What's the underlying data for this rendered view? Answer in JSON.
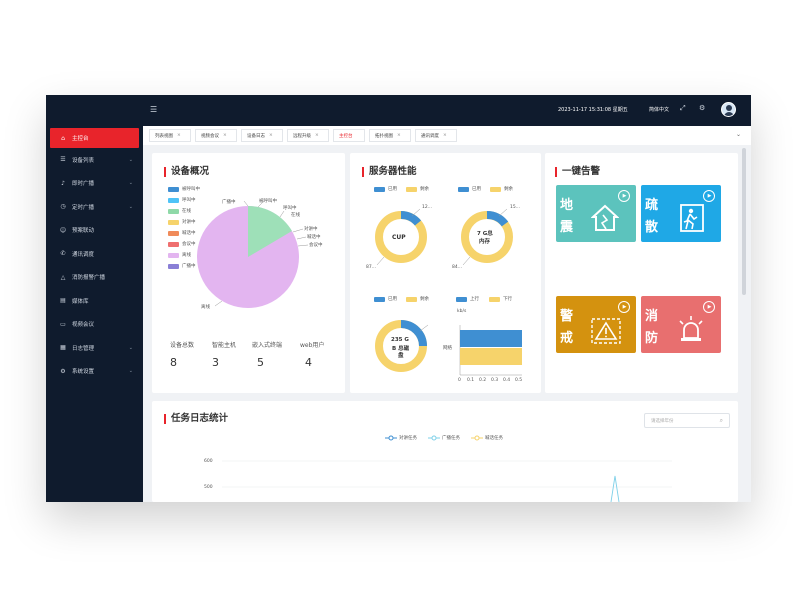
{
  "topbar": {
    "menu_icon": "menu-fold-icon",
    "datetime": "2023-11-17 15:31:08 星期五",
    "language": "简体中文",
    "fullscreen_icon": "fullscreen-icon",
    "settings_icon": "gear-icon",
    "bg_color": "#0f1b2d"
  },
  "sidebar": {
    "items": [
      {
        "label": "主控台",
        "icon": "home-icon",
        "active": true
      },
      {
        "label": "设备列表",
        "icon": "list-icon",
        "has_children": true
      },
      {
        "label": "即时广播",
        "icon": "bell-icon",
        "has_children": true
      },
      {
        "label": "定时广播",
        "icon": "clock-icon",
        "has_children": true
      },
      {
        "label": "预案联动",
        "icon": "users-icon"
      },
      {
        "label": "通讯调度",
        "icon": "phone-icon"
      },
      {
        "label": "消防报警广播",
        "icon": "alarm-icon"
      },
      {
        "label": "媒体库",
        "icon": "database-icon"
      },
      {
        "label": "视频会议",
        "icon": "video-icon"
      },
      {
        "label": "日志管理",
        "icon": "log-icon",
        "has_children": true
      },
      {
        "label": "系统设置",
        "icon": "settings-icon",
        "has_children": true
      }
    ],
    "accent_color": "#e8242b"
  },
  "tabs": [
    {
      "label": "列表视图",
      "active": false
    },
    {
      "label": "视频会议",
      "active": false
    },
    {
      "label": "设备日志",
      "active": false
    },
    {
      "label": "远程升级",
      "active": false
    },
    {
      "label": "主控台",
      "active": true
    },
    {
      "label": "拓扑视图",
      "active": false
    },
    {
      "label": "通讯调度",
      "active": false
    }
  ],
  "device_overview": {
    "title": "设备概况",
    "legend": [
      {
        "label": "被呼叫中",
        "color": "#3f8fd2"
      },
      {
        "label": "呼叫中",
        "color": "#4fc3f7"
      },
      {
        "label": "在线",
        "color": "#8fd9a8"
      },
      {
        "label": "对讲中",
        "color": "#f6d36b"
      },
      {
        "label": "喊话中",
        "color": "#f08b5a"
      },
      {
        "label": "会议中",
        "color": "#ef6f6f"
      },
      {
        "label": "离线",
        "color": "#e3b5f0"
      },
      {
        "label": "广播中",
        "color": "#8a7fd6"
      }
    ],
    "pie_labels": [
      "广播中",
      "被呼叫中",
      "呼叫中",
      "在线",
      "对讲中",
      "喊话中",
      "会议中",
      "离线"
    ],
    "stats": [
      {
        "label": "设备总数",
        "value": "8"
      },
      {
        "label": "智能主机",
        "value": "3"
      },
      {
        "label": "嵌入式终端",
        "value": "5"
      },
      {
        "label": "web用户",
        "value": "4"
      }
    ]
  },
  "server_perf": {
    "title": "服务器性能",
    "legend_used": "已用",
    "legend_free": "剩余",
    "used_color": "#3f8fd2",
    "free_color": "#f6d36b",
    "cpu": {
      "label": "CUP",
      "used_label": "12...",
      "free_label": "87..."
    },
    "memory": {
      "label_line1": "7 G总",
      "label_line2": "内存",
      "used_label": "15...",
      "free_label": "84..."
    },
    "disk": {
      "label_line1": "235 G",
      "label_line2": "B 总磁",
      "label_line3": "盘"
    },
    "network": {
      "legend_up": "上行",
      "legend_down": "下行",
      "unit": "kb/s",
      "category": "网络",
      "x_ticks": [
        "0",
        "0.1",
        "0.2",
        "0.3",
        "0.4",
        "0.5"
      ]
    }
  },
  "one_key_alarm": {
    "title": "一键告警",
    "buttons": [
      {
        "chars": [
          "地",
          "震"
        ],
        "color": "#5cc3bd",
        "icon": "earthquake-icon"
      },
      {
        "chars": [
          "疏",
          "散"
        ],
        "color": "#1fa8e6",
        "icon": "evacuation-icon"
      },
      {
        "chars": [
          "警",
          "戒"
        ],
        "color": "#d4920f",
        "icon": "warning-icon"
      },
      {
        "chars": [
          "消",
          "防"
        ],
        "color": "#e86f6f",
        "icon": "siren-icon"
      }
    ]
  },
  "task_log": {
    "title": "任务日志统计",
    "search_placeholder": "请选择年份",
    "legend": [
      {
        "label": "对讲任务",
        "color": "#3f8fd2"
      },
      {
        "label": "广播任务",
        "color": "#7ed0e8"
      },
      {
        "label": "喊话任务",
        "color": "#f6d36b"
      }
    ],
    "y_ticks": [
      "600",
      "500"
    ]
  }
}
